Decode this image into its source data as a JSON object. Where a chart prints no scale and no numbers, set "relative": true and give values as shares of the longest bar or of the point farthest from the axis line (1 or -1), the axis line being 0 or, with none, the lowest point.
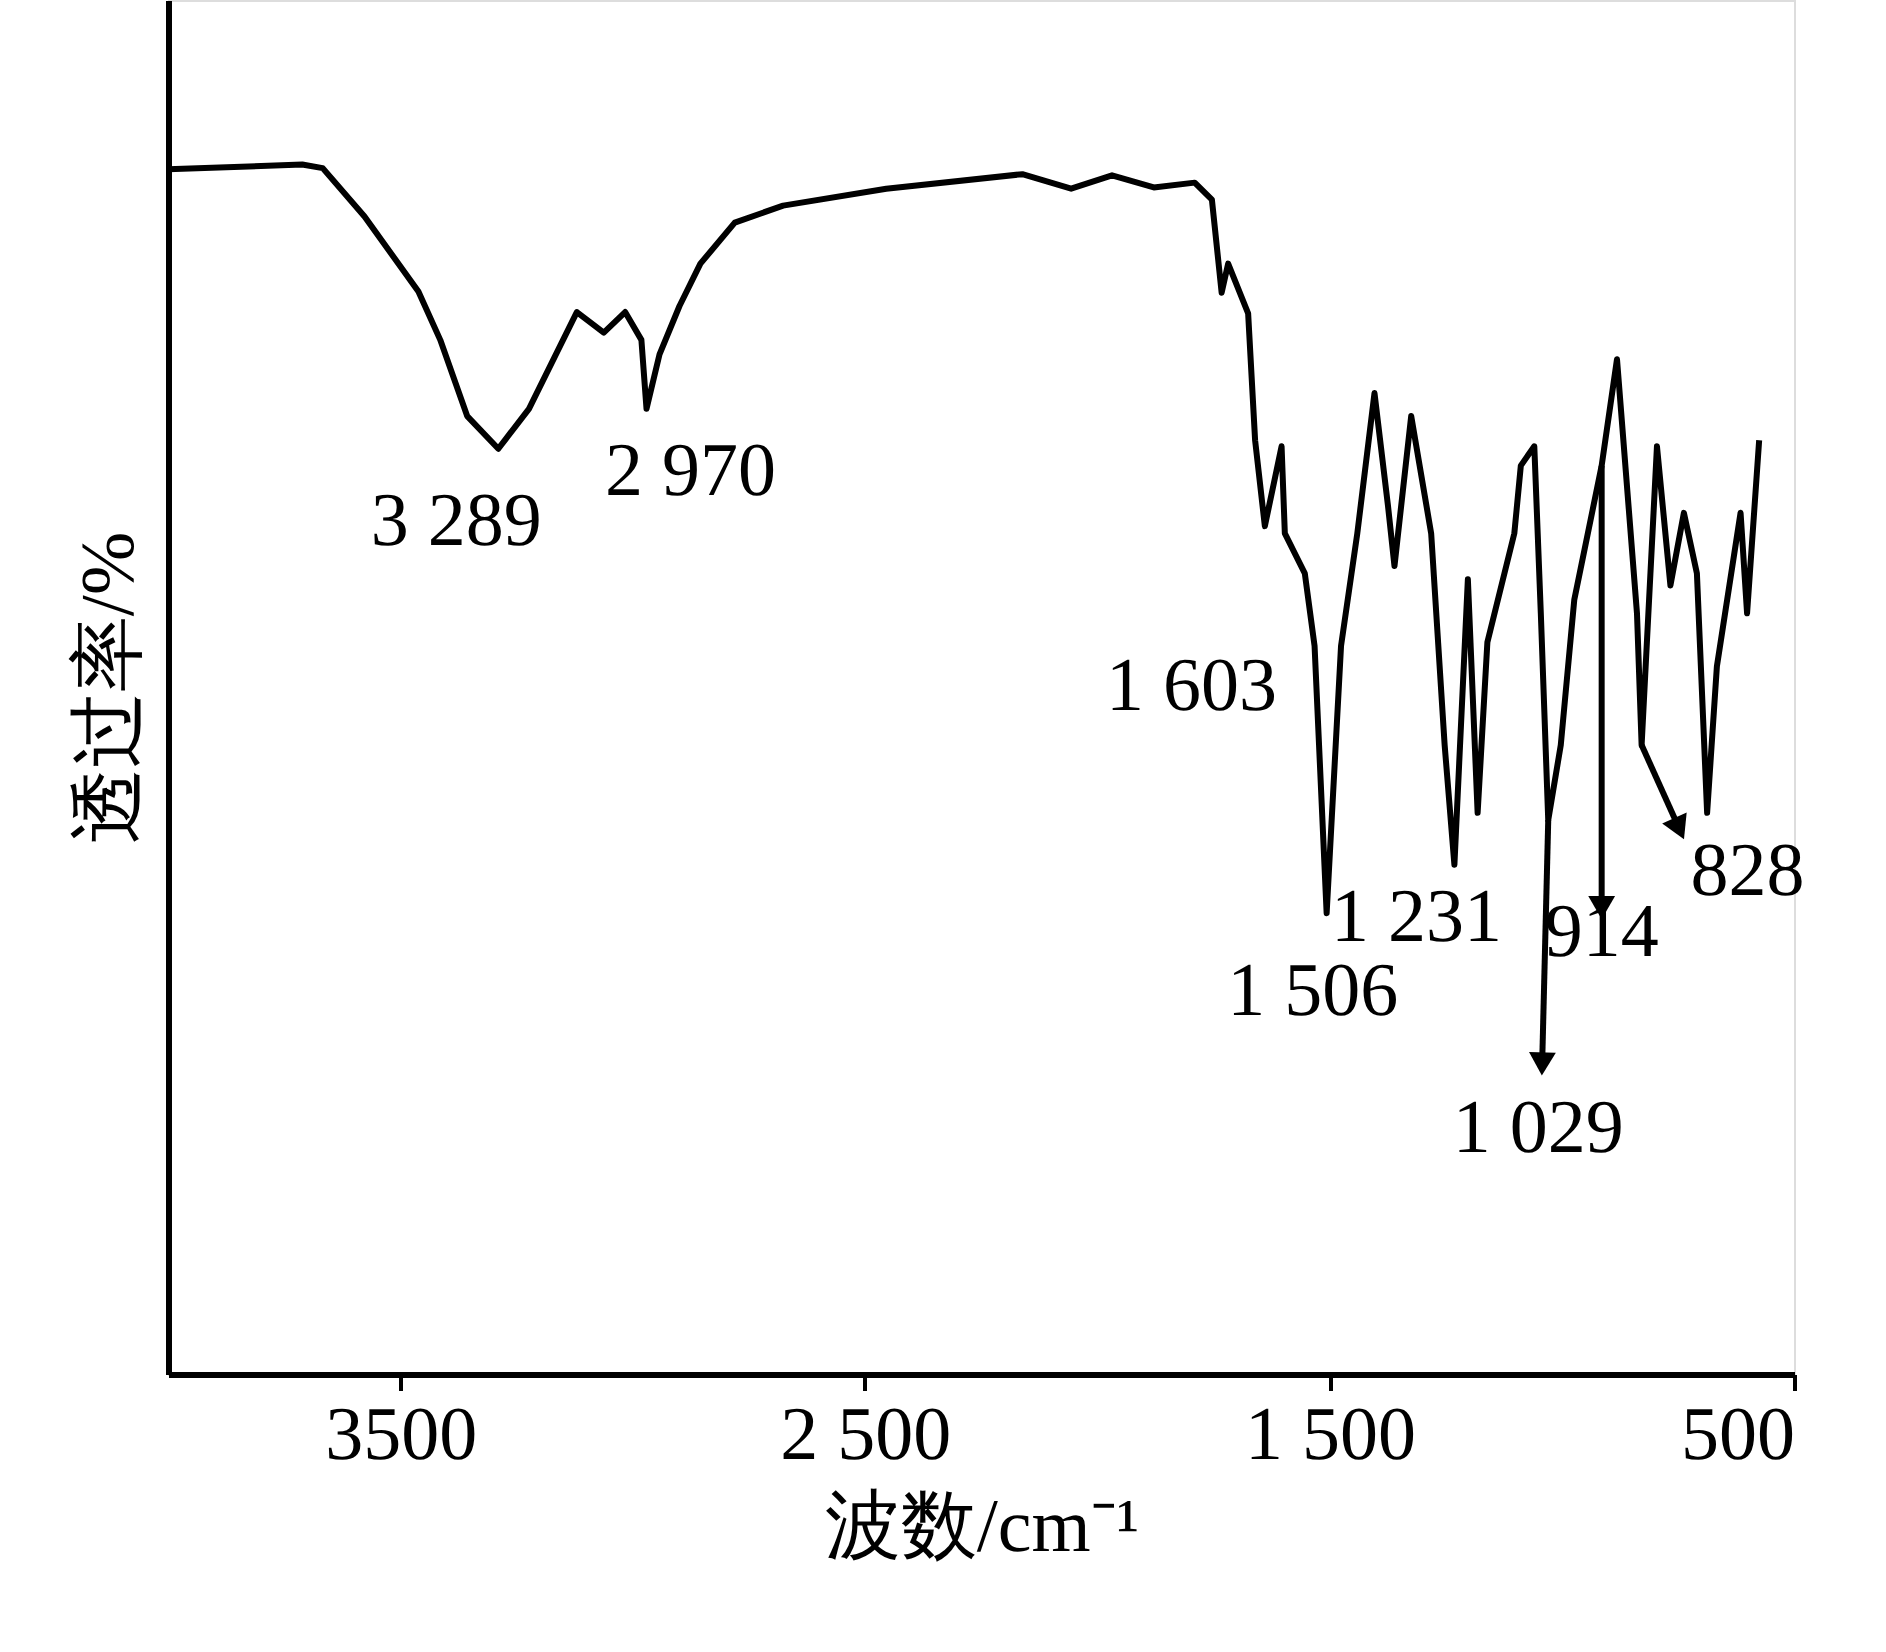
{
  "chart_data": {
    "type": "line",
    "relative": true,
    "xlabel": "波数/cm⁻¹",
    "ylabel": "透过率/%",
    "xlim": [
      4000,
      500
    ],
    "xticks": [
      3500,
      {
        "value": 2500,
        "label": "2 500"
      },
      {
        "value": 1500,
        "label": "1 500"
      },
      500
    ],
    "grid": false,
    "marker": "none",
    "line_style": "solid",
    "series": [
      {
        "color": "#000000",
        "x": [
          4000,
          3711,
          3667,
          3577,
          3461,
          3414,
          3356,
          3289,
          3223,
          3120,
          3062,
          3016,
          2981,
          2970,
          2942,
          2899,
          2854,
          2780,
          2676,
          2454,
          2161,
          2056,
          1968,
          1878,
          1790,
          1753,
          1747,
          1732,
          1718,
          1675,
          1660,
          1639,
          1603,
          1596,
          1553,
          1532,
          1506,
          1475,
          1440,
          1403,
          1374,
          1360,
          1324,
          1281,
          1252,
          1231,
          1202,
          1181,
          1160,
          1102,
          1088,
          1059,
          1045,
          1029,
          1002,
          973,
          914,
          881,
          838,
          828,
          795,
          766,
          737,
          709,
          687,
          666,
          615,
          601,
          575
        ],
        "values": [
          0.996,
          1.0,
          0.997,
          0.957,
          0.895,
          0.855,
          0.792,
          0.765,
          0.798,
          0.878,
          0.861,
          0.878,
          0.855,
          0.798,
          0.843,
          0.883,
          0.918,
          0.952,
          0.966,
          0.98,
          0.992,
          0.98,
          0.991,
          0.981,
          0.985,
          0.971,
          0.949,
          0.894,
          0.918,
          0.877,
          0.772,
          0.701,
          0.767,
          0.695,
          0.662,
          0.602,
          0.381,
          0.602,
          0.695,
          0.811,
          0.718,
          0.668,
          0.792,
          0.695,
          0.52,
          0.421,
          0.657,
          0.464,
          0.605,
          0.695,
          0.751,
          0.767,
          0.629,
          0.458,
          0.52,
          0.64,
          0.751,
          0.839,
          0.629,
          0.52,
          0.767,
          0.652,
          0.712,
          0.662,
          0.464,
          0.585,
          0.712,
          0.629,
          0.772
        ]
      }
    ],
    "annotations": [
      {
        "text": "3 289",
        "x": 3289,
        "y": 0.765
      },
      {
        "text": "2 970",
        "x": 2970,
        "y": 0.798
      },
      {
        "text": "1 603",
        "x": 1603,
        "y": 0.767
      },
      {
        "text": "1 506",
        "x": 1506,
        "y": 0.381
      },
      {
        "text": "1 231",
        "x": 1231,
        "y": 0.421
      },
      {
        "text": "1 029",
        "x": 1029,
        "y": 0.458
      },
      {
        "text": "914",
        "x": 914,
        "y": 0.751
      },
      {
        "text": "828",
        "x": 828,
        "y": 0.52
      }
    ]
  }
}
